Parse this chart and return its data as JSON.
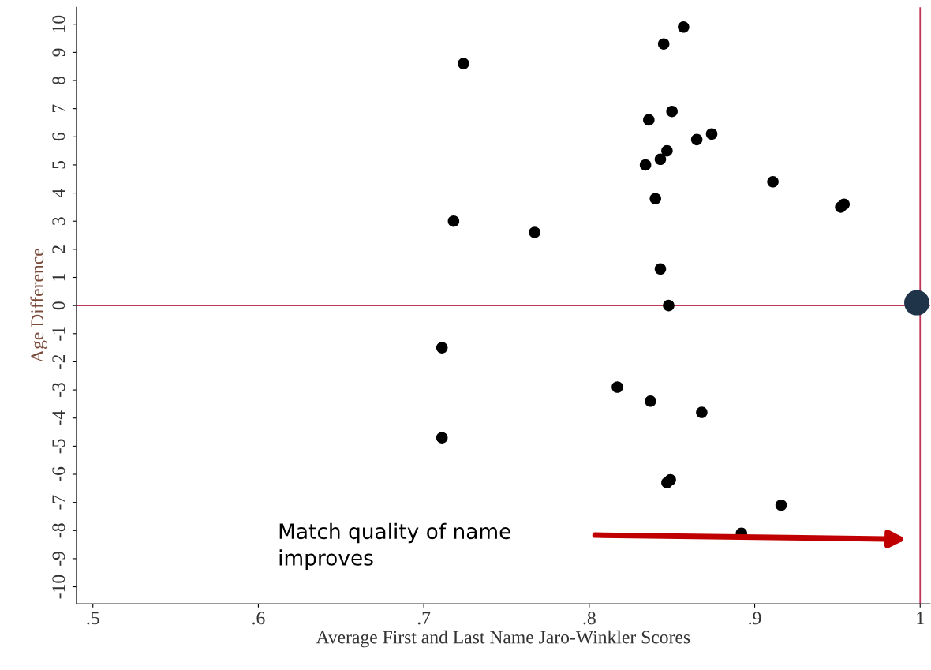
{
  "chart_data": {
    "type": "scatter",
    "xlabel": "Average First and Last Name Jaro-Winkler Scores",
    "ylabel": "Age Difference",
    "series": [
      {
        "color": "#000000",
        "x": [
          0.857,
          0.845,
          0.724,
          0.85,
          0.836,
          0.874,
          0.865,
          0.847,
          0.843,
          0.834,
          0.911,
          0.954,
          0.952,
          0.84,
          0.718,
          0.767,
          0.843,
          0.848,
          0.711,
          0.817,
          0.837,
          0.868,
          0.711,
          0.849,
          0.847,
          0.916,
          0.892
        ],
        "values": [
          9.9,
          9.3,
          8.6,
          6.9,
          6.6,
          6.1,
          5.9,
          5.5,
          5.2,
          5.0,
          4.4,
          3.6,
          3.5,
          3.8,
          3.0,
          2.6,
          1.3,
          0.0,
          -1.5,
          -2.9,
          -3.4,
          -3.8,
          -4.7,
          -6.2,
          -6.3,
          -7.1,
          -8.1
        ]
      },
      {
        "color": "#1f3349",
        "x": [
          0.998
        ],
        "values": [
          0.1
        ]
      }
    ],
    "ref_lines": [
      {
        "axis": "x",
        "value": 1.0,
        "color": "#c0365a"
      },
      {
        "axis": "y",
        "value": 0,
        "color": "#c0365a"
      }
    ],
    "annotations": [
      "Match quality of name\nimproves"
    ],
    "xlim": [
      0.49,
      1.006
    ],
    "ylim": [
      -10.6,
      10.6
    ],
    "xticks": [
      {
        "value": 0.5,
        "label": ".5"
      },
      {
        "value": 0.6,
        "label": ".6"
      },
      {
        "value": 0.7,
        "label": ".7"
      },
      {
        "value": 0.8,
        "label": ".8"
      },
      {
        "value": 0.9,
        "label": ".9"
      },
      1
    ],
    "yticks": [
      -10,
      -9,
      -8,
      -7,
      -6,
      -5,
      -4,
      -3,
      -2,
      -1,
      0,
      1,
      2,
      3,
      4,
      5,
      6,
      7,
      8,
      9,
      10
    ],
    "marker": "circle",
    "grid": false,
    "legend": false
  }
}
